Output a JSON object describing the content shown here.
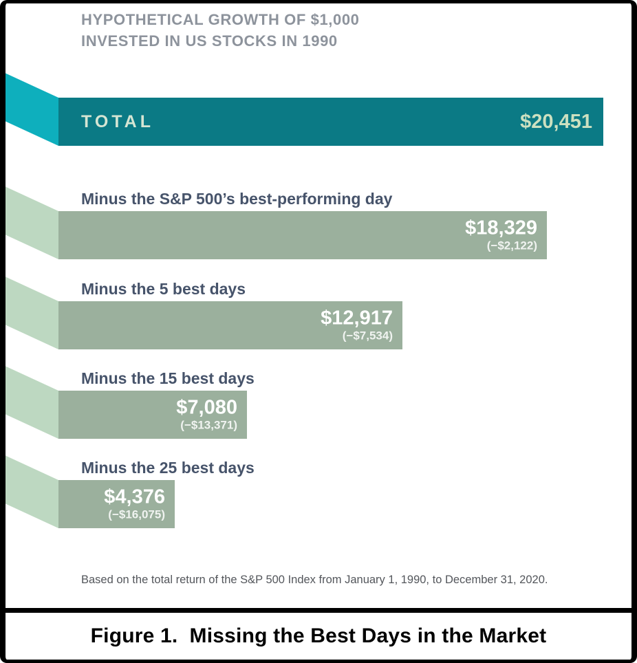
{
  "caption": "Figure 1.  Missing the Best Days in the Market",
  "colors": {
    "teal_bar": "#0B7A85",
    "teal_ribbon": "#0EAFBD",
    "green_bar": "#9BB09D",
    "green_ribbon": "#BDD8C1",
    "title_text": "#8D939C",
    "row_label_text": "#46536A",
    "footnote_text": "#53565B",
    "value_on_teal": "#CCE0C0",
    "value_on_green": "#FFFFFF",
    "frame": "#000000",
    "caption_text": "#000000"
  },
  "chart_data": {
    "type": "bar",
    "orientation": "horizontal",
    "title": "HYPOTHETICAL GROWTH OF $1,000 INVESTED IN US STOCKS IN 1990",
    "title_lines": [
      "HYPOTHETICAL GROWTH OF $1,000",
      "INVESTED IN US STOCKS IN 1990"
    ],
    "unit": "USD",
    "xlim": [
      0,
      20451
    ],
    "total_value": 20451,
    "total": {
      "label": "TOTAL",
      "value": 20451,
      "value_label": "$20,451"
    },
    "rows": [
      {
        "label": "Minus the S&P 500’s best-performing day",
        "value": 18329,
        "value_label": "$18,329",
        "delta": -2122,
        "delta_label": "(−$2,122)"
      },
      {
        "label": "Minus the 5 best days",
        "value": 12917,
        "value_label": "$12,917",
        "delta": -7534,
        "delta_label": "(−$7,534)"
      },
      {
        "label": "Minus the 15 best days",
        "value": 7080,
        "value_label": "$7,080",
        "delta": -13371,
        "delta_label": "(−$13,371)"
      },
      {
        "label": "Minus the 25 best days",
        "value": 4376,
        "value_label": "$4,376",
        "delta": -16075,
        "delta_label": "(−$16,075)"
      }
    ],
    "footnote": "Based on the total return of the S&P 500 Index from January 1, 1990, to December 31, 2020.",
    "legend": null,
    "grid": false
  }
}
